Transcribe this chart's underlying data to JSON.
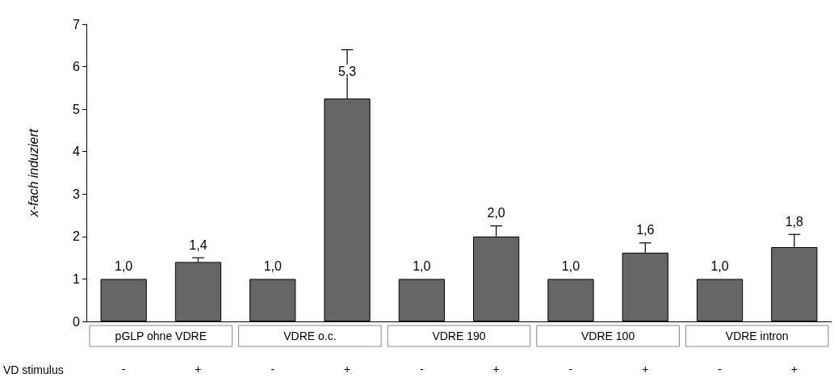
{
  "chart_data": {
    "type": "bar",
    "ylabel": "x-fach induziert",
    "categories": [
      "-",
      "+",
      "-",
      "+",
      "-",
      "+",
      "-",
      "+",
      "-",
      "+"
    ],
    "values": [
      1.0,
      1.4,
      1.0,
      5.25,
      1.0,
      2.0,
      1.0,
      1.62,
      1.0,
      1.75
    ],
    "color": "#666666",
    "errors": [
      null,
      [
        1.4,
        1.5
      ],
      null,
      [
        5.25,
        6.4
      ],
      null,
      [
        2.0,
        2.25
      ],
      null,
      [
        1.62,
        1.85
      ],
      null,
      [
        1.75,
        2.05
      ]
    ],
    "value_labels": [
      "1,0",
      "1,4",
      "1,0",
      "5,3",
      "1,0",
      "2,0",
      "1,0",
      "1,6",
      "1,0",
      "1,8"
    ],
    "ylim": [
      0,
      7
    ],
    "yticks": [
      0,
      1,
      2,
      3,
      4,
      5,
      6,
      7
    ],
    "grid": false,
    "annotations": [
      "pGLP ohne VDRE",
      "VDRE o.c.",
      "VDRE 190",
      "VDRE 100",
      "VDRE intron",
      "VD stimulus"
    ]
  }
}
